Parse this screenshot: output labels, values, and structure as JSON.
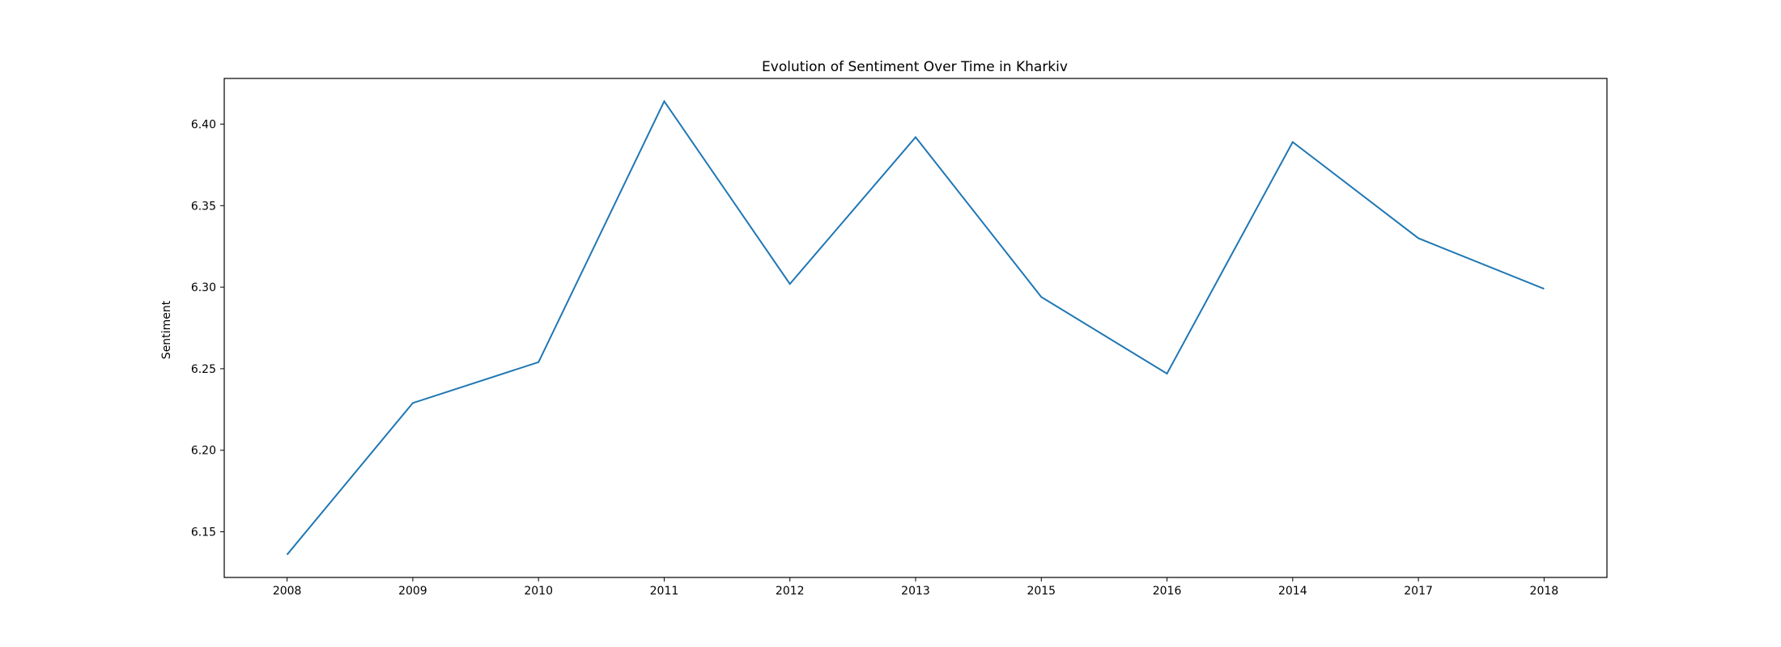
{
  "chart_data": {
    "type": "line",
    "title": "Evolution of Sentiment Over Time in Kharkiv",
    "xlabel": "",
    "ylabel": "Sentiment",
    "categories": [
      "2008",
      "2009",
      "2010",
      "2011",
      "2012",
      "2013",
      "2015",
      "2016",
      "2014",
      "2017",
      "2018"
    ],
    "series": [
      {
        "name": "Sentiment",
        "color": "#1f77b4",
        "values": [
          6.136,
          6.229,
          6.254,
          6.414,
          6.302,
          6.392,
          6.294,
          6.247,
          6.389,
          6.33,
          6.299
        ]
      }
    ],
    "ylim": [
      6.122,
      6.428
    ],
    "yticks": [
      6.15,
      6.2,
      6.25,
      6.3,
      6.35,
      6.4
    ],
    "ytick_labels": [
      "6.15",
      "6.20",
      "6.25",
      "6.30",
      "6.35",
      "6.40"
    ],
    "grid": false,
    "legend": "none"
  }
}
